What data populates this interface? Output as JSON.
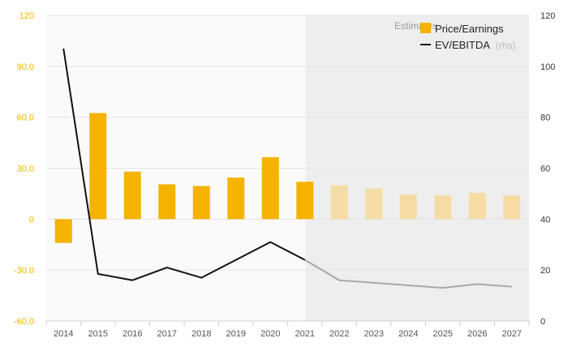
{
  "chart_data": {
    "type": "bar+line",
    "categories": [
      "2014",
      "2015",
      "2016",
      "2017",
      "2018",
      "2019",
      "2020",
      "2021",
      "2022",
      "2023",
      "2024",
      "2025",
      "2026",
      "2027"
    ],
    "estimates_from": "2022",
    "estimates_label": "Estimates",
    "series": [
      {
        "name": "Price/Earnings",
        "type": "bar",
        "axis": "left",
        "color": "#f5b300",
        "estimate_color": "#f5dca4",
        "values": [
          -14,
          62.5,
          28,
          20.5,
          19.5,
          24.5,
          36.5,
          22,
          20,
          18,
          14.5,
          14,
          15.5,
          14
        ]
      },
      {
        "name": "EV/EBITDA",
        "name_suffix": "(rhs)",
        "type": "line",
        "axis": "right",
        "color": "#111111",
        "estimate_color": "#a8a8a8",
        "values": [
          107,
          18.5,
          16,
          21,
          17,
          24,
          31,
          24,
          16,
          15,
          14,
          13,
          14.5,
          13.5
        ]
      }
    ],
    "left_axis": {
      "min": -60,
      "max": 120,
      "ticks": [
        "120",
        "90.0",
        "60.0",
        "30.0",
        "0",
        "-30.0",
        "-60.0"
      ],
      "color": "#f2b600"
    },
    "right_axis": {
      "min": 0,
      "max": 120,
      "ticks": [
        "120",
        "100",
        "80",
        "60",
        "40",
        "20",
        "0"
      ]
    },
    "grid": true,
    "legend_position": "top-right"
  }
}
